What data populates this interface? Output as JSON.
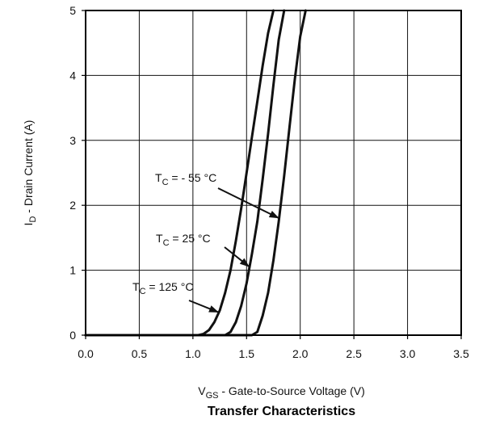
{
  "chart_data": {
    "type": "line",
    "title": "Transfer Characteristics",
    "xlabel": {
      "main": "V",
      "sub": "GS",
      "rest": " - Gate-to-Source Voltage (V)"
    },
    "ylabel": {
      "main": "I",
      "sub": "D",
      "rest": " - Drain Current (A)"
    },
    "xlim": [
      0.0,
      3.5
    ],
    "ylim": [
      0,
      5
    ],
    "x_ticks": [
      "0.0",
      "0.5",
      "1.0",
      "1.5",
      "2.0",
      "2.5",
      "3.0",
      "3.5"
    ],
    "y_ticks": [
      "0",
      "1",
      "2",
      "3",
      "4",
      "5"
    ],
    "grid": true,
    "series": [
      {
        "name": {
          "main": "T",
          "sub": "C",
          "rest": " = 125 °C"
        },
        "x": [
          0.0,
          1.05,
          1.1,
          1.15,
          1.2,
          1.25,
          1.3,
          1.35,
          1.4,
          1.45,
          1.5,
          1.55,
          1.6,
          1.65,
          1.7,
          1.75
        ],
        "y": [
          0.0,
          0.0,
          0.02,
          0.08,
          0.2,
          0.38,
          0.65,
          1.0,
          1.45,
          1.95,
          2.5,
          3.05,
          3.6,
          4.15,
          4.65,
          5.0
        ]
      },
      {
        "name": {
          "main": "T",
          "sub": "C",
          "rest": " = 25 °C"
        },
        "x": [
          0.0,
          1.3,
          1.35,
          1.4,
          1.45,
          1.5,
          1.55,
          1.6,
          1.65,
          1.7,
          1.75,
          1.8,
          1.85
        ],
        "y": [
          0.0,
          0.0,
          0.05,
          0.2,
          0.45,
          0.8,
          1.25,
          1.75,
          2.4,
          3.1,
          3.85,
          4.55,
          5.0
        ]
      },
      {
        "name": {
          "main": "T",
          "sub": "C",
          "rest": " = - 55 °C"
        },
        "x": [
          0.0,
          1.55,
          1.6,
          1.65,
          1.7,
          1.75,
          1.8,
          1.85,
          1.9,
          1.95,
          2.0,
          2.05
        ],
        "y": [
          0.0,
          0.0,
          0.05,
          0.3,
          0.65,
          1.15,
          1.75,
          2.45,
          3.2,
          3.95,
          4.6,
          5.0
        ]
      }
    ],
    "colors": {
      "line": "#111111",
      "grid": "#111111",
      "axis": "#000000"
    }
  }
}
